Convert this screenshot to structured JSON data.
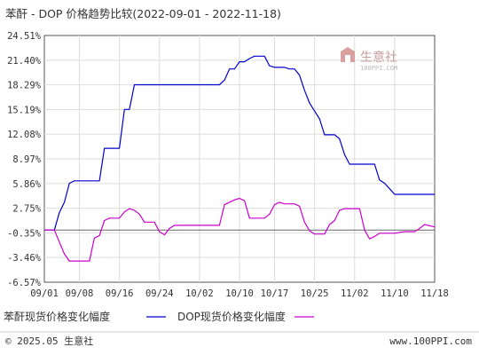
{
  "chart_data": {
    "type": "line",
    "title": "苯酐 - DOP 价格趋势比较(2022-09-01 - 2022-11-18)",
    "xlabel": "",
    "ylabel": "",
    "y_tick_labels": [
      "24.51%",
      "21.40%",
      "18.29%",
      "15.19%",
      "12.08%",
      "8.97%",
      "5.86%",
      "2.75%",
      "-0.35%",
      "-3.46%",
      "-6.57%"
    ],
    "y_tick_values": [
      24.51,
      21.4,
      18.29,
      15.19,
      12.08,
      8.97,
      5.86,
      2.75,
      -0.35,
      -3.46,
      -6.57
    ],
    "ylim": [
      -6.57,
      24.51
    ],
    "x_range": [
      "2022-09-01",
      "2022-11-18"
    ],
    "x_tick_labels": [
      "09/01",
      "09/08",
      "09/16",
      "09/24",
      "10/02",
      "10/10",
      "10/17",
      "10/25",
      "11/02",
      "11/10",
      "11/18"
    ],
    "x_tick_dates": [
      "2022-09-01",
      "2022-09-08",
      "2022-09-16",
      "2022-09-24",
      "2022-10-02",
      "2022-10-10",
      "2022-10-17",
      "2022-10-25",
      "2022-11-02",
      "2022-11-10",
      "2022-11-18"
    ],
    "grid": true,
    "legend_position": "bottom-left",
    "series": [
      {
        "name": "苯酐现货价格变化幅度",
        "color": "#0000cc",
        "points": [
          [
            "2022-09-01",
            0.0
          ],
          [
            "2022-09-02",
            0.0
          ],
          [
            "2022-09-03",
            0.0
          ],
          [
            "2022-09-04",
            2.2
          ],
          [
            "2022-09-05",
            3.5
          ],
          [
            "2022-09-06",
            5.9
          ],
          [
            "2022-09-07",
            6.2
          ],
          [
            "2022-09-08",
            6.2
          ],
          [
            "2022-09-09",
            6.2
          ],
          [
            "2022-09-10",
            6.2
          ],
          [
            "2022-09-11",
            6.2
          ],
          [
            "2022-09-12",
            6.2
          ],
          [
            "2022-09-13",
            10.3
          ],
          [
            "2022-09-14",
            10.3
          ],
          [
            "2022-09-15",
            10.3
          ],
          [
            "2022-09-16",
            10.3
          ],
          [
            "2022-09-17",
            15.2
          ],
          [
            "2022-09-18",
            15.2
          ],
          [
            "2022-09-19",
            18.3
          ],
          [
            "2022-09-20",
            18.3
          ],
          [
            "2022-09-21",
            18.3
          ],
          [
            "2022-09-28",
            18.3
          ],
          [
            "2022-10-05",
            18.3
          ],
          [
            "2022-10-06",
            18.3
          ],
          [
            "2022-10-07",
            18.9
          ],
          [
            "2022-10-08",
            20.3
          ],
          [
            "2022-10-09",
            20.3
          ],
          [
            "2022-10-10",
            21.2
          ],
          [
            "2022-10-11",
            21.2
          ],
          [
            "2022-10-12",
            21.6
          ],
          [
            "2022-10-13",
            21.9
          ],
          [
            "2022-10-14",
            21.9
          ],
          [
            "2022-10-15",
            21.9
          ],
          [
            "2022-10-16",
            20.7
          ],
          [
            "2022-10-17",
            20.5
          ],
          [
            "2022-10-18",
            20.5
          ],
          [
            "2022-10-19",
            20.5
          ],
          [
            "2022-10-20",
            20.3
          ],
          [
            "2022-10-21",
            20.3
          ],
          [
            "2022-10-22",
            19.5
          ],
          [
            "2022-10-23",
            17.6
          ],
          [
            "2022-10-24",
            16.0
          ],
          [
            "2022-10-25",
            15.0
          ],
          [
            "2022-10-26",
            14.0
          ],
          [
            "2022-10-27",
            12.0
          ],
          [
            "2022-10-28",
            12.0
          ],
          [
            "2022-10-29",
            12.0
          ],
          [
            "2022-10-30",
            11.5
          ],
          [
            "2022-10-31",
            9.5
          ],
          [
            "2022-11-01",
            8.3
          ],
          [
            "2022-11-02",
            8.3
          ],
          [
            "2022-11-03",
            8.3
          ],
          [
            "2022-11-04",
            8.3
          ],
          [
            "2022-11-05",
            8.3
          ],
          [
            "2022-11-06",
            8.3
          ],
          [
            "2022-11-07",
            6.3
          ],
          [
            "2022-11-08",
            5.9
          ],
          [
            "2022-11-09",
            5.2
          ],
          [
            "2022-11-10",
            4.5
          ],
          [
            "2022-11-11",
            4.5
          ],
          [
            "2022-11-14",
            4.5
          ],
          [
            "2022-11-18",
            4.5
          ]
        ]
      },
      {
        "name": "DOP现货价格变化幅度",
        "color": "#cc00cc",
        "points": [
          [
            "2022-09-01",
            0.0
          ],
          [
            "2022-09-02",
            0.0
          ],
          [
            "2022-09-03",
            0.0
          ],
          [
            "2022-09-04",
            -1.5
          ],
          [
            "2022-09-05",
            -3.0
          ],
          [
            "2022-09-06",
            -3.9
          ],
          [
            "2022-09-07",
            -3.9
          ],
          [
            "2022-09-08",
            -3.9
          ],
          [
            "2022-09-09",
            -3.9
          ],
          [
            "2022-09-10",
            -3.9
          ],
          [
            "2022-09-11",
            -1.0
          ],
          [
            "2022-09-12",
            -0.7
          ],
          [
            "2022-09-13",
            1.2
          ],
          [
            "2022-09-14",
            1.5
          ],
          [
            "2022-09-15",
            1.5
          ],
          [
            "2022-09-16",
            1.5
          ],
          [
            "2022-09-17",
            2.3
          ],
          [
            "2022-09-18",
            2.7
          ],
          [
            "2022-09-19",
            2.5
          ],
          [
            "2022-09-20",
            2.0
          ],
          [
            "2022-09-21",
            1.0
          ],
          [
            "2022-09-22",
            1.0
          ],
          [
            "2022-09-23",
            1.0
          ],
          [
            "2022-09-24",
            -0.2
          ],
          [
            "2022-09-25",
            -0.6
          ],
          [
            "2022-09-26",
            0.2
          ],
          [
            "2022-09-27",
            0.6
          ],
          [
            "2022-10-05",
            0.6
          ],
          [
            "2022-10-06",
            0.6
          ],
          [
            "2022-10-07",
            3.2
          ],
          [
            "2022-10-08",
            3.5
          ],
          [
            "2022-10-09",
            3.8
          ],
          [
            "2022-10-10",
            4.0
          ],
          [
            "2022-10-11",
            3.7
          ],
          [
            "2022-10-12",
            1.5
          ],
          [
            "2022-10-13",
            1.5
          ],
          [
            "2022-10-14",
            1.5
          ],
          [
            "2022-10-15",
            1.5
          ],
          [
            "2022-10-16",
            2.0
          ],
          [
            "2022-10-17",
            3.2
          ],
          [
            "2022-10-18",
            3.5
          ],
          [
            "2022-10-19",
            3.3
          ],
          [
            "2022-10-20",
            3.3
          ],
          [
            "2022-10-21",
            3.3
          ],
          [
            "2022-10-22",
            3.0
          ],
          [
            "2022-10-23",
            1.0
          ],
          [
            "2022-10-24",
            -0.1
          ],
          [
            "2022-10-25",
            -0.5
          ],
          [
            "2022-10-26",
            -0.5
          ],
          [
            "2022-10-27",
            -0.5
          ],
          [
            "2022-10-28",
            0.7
          ],
          [
            "2022-10-29",
            1.2
          ],
          [
            "2022-10-30",
            2.5
          ],
          [
            "2022-10-31",
            2.7
          ],
          [
            "2022-11-01",
            2.7
          ],
          [
            "2022-11-02",
            2.7
          ],
          [
            "2022-11-03",
            2.7
          ],
          [
            "2022-11-04",
            0.0
          ],
          [
            "2022-11-05",
            -1.1
          ],
          [
            "2022-11-06",
            -0.8
          ],
          [
            "2022-11-07",
            -0.4
          ],
          [
            "2022-11-08",
            -0.4
          ],
          [
            "2022-11-10",
            -0.4
          ],
          [
            "2022-11-12",
            -0.2
          ],
          [
            "2022-11-14",
            -0.2
          ],
          [
            "2022-11-15",
            0.2
          ],
          [
            "2022-11-16",
            0.7
          ],
          [
            "2022-11-18",
            0.4
          ]
        ]
      }
    ]
  },
  "watermark": {
    "brand_text": "生意社",
    "site_text": "100PPI.COM"
  },
  "footer": {
    "copyright": "© 2025.05 生意社",
    "website": "www.100PPI.com"
  },
  "colors": {
    "plot_background": "#ffffff",
    "plot_border": "#555555",
    "grid": "#dddddd",
    "text": "#333333",
    "zero_line": "#666666",
    "watermark_red": "#d9a0a0",
    "watermark_grey": "#bbbbbb"
  }
}
